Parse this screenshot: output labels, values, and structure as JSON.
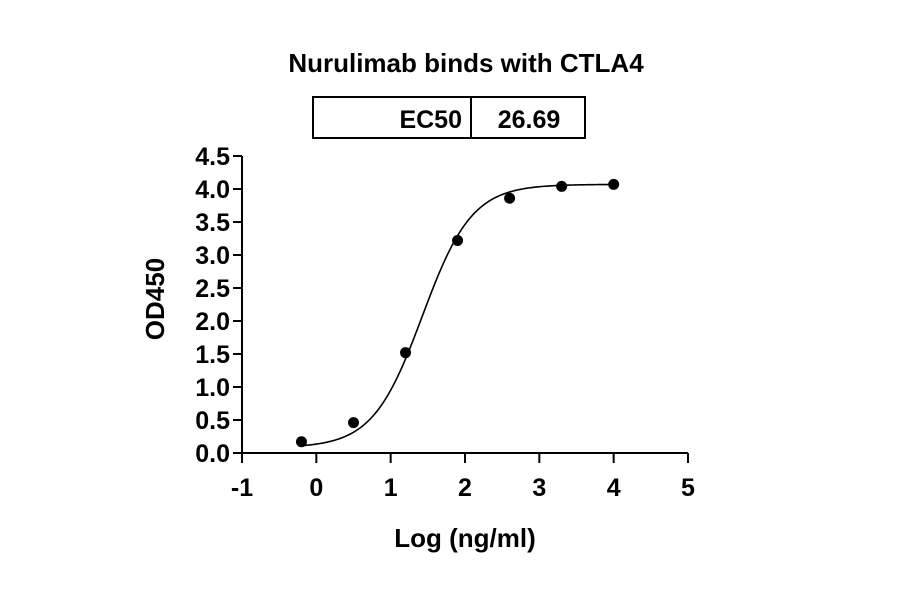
{
  "chart_data": {
    "type": "scatter",
    "title": "Nurulimab binds with CTLA4",
    "xlabel": "Log (ng/ml)",
    "ylabel": "OD450",
    "xlim": [
      -1,
      5
    ],
    "ylim": [
      0,
      4.5
    ],
    "x_ticks": [
      "-1",
      "0",
      "1",
      "2",
      "3",
      "4",
      "5"
    ],
    "y_ticks": [
      "0.0",
      "0.5",
      "1.0",
      "1.5",
      "2.0",
      "2.5",
      "3.0",
      "3.5",
      "4.0",
      "4.5"
    ],
    "grid": false,
    "series": [
      {
        "x": [
          -0.2,
          0.5,
          1.2,
          1.9,
          2.6,
          3.3,
          4.0
        ],
        "y": [
          0.17,
          0.46,
          1.52,
          3.22,
          3.86,
          4.04,
          4.07
        ]
      }
    ],
    "fit_curve": {
      "model": "4PL",
      "bottom": 0.08,
      "top": 4.07,
      "log_ec50": 1.426,
      "hill_slope": 1.3,
      "x_range": [
        -0.2,
        4.0
      ]
    },
    "table": {
      "header": "EC50",
      "value": "26.69"
    },
    "colors": {
      "points": "#000000",
      "curve": "#000000",
      "axes": "#000000"
    }
  }
}
